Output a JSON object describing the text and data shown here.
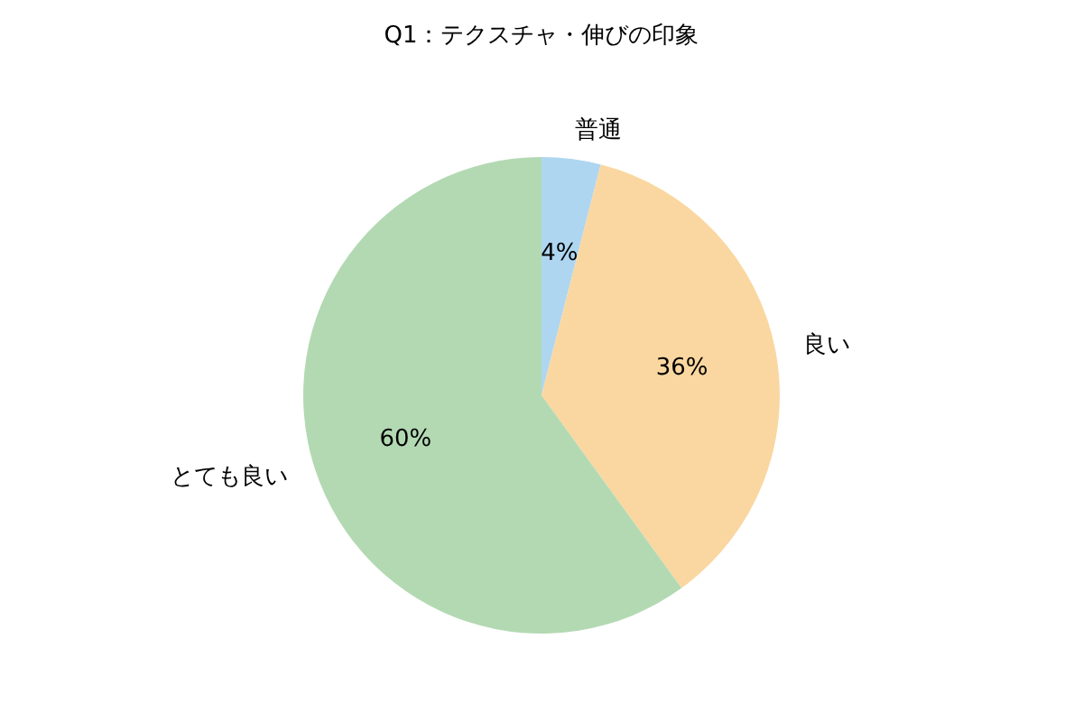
{
  "chart_data": {
    "type": "pie",
    "title": "Q1：テクスチャ・伸びの印象",
    "categories": [
      "普通",
      "良い",
      "とても良い"
    ],
    "values": [
      4,
      36,
      60
    ],
    "value_labels": [
      "4%",
      "36%",
      "60%"
    ],
    "colors": [
      "#aed6f1",
      "#fad7a0",
      "#b3d9b3"
    ]
  }
}
